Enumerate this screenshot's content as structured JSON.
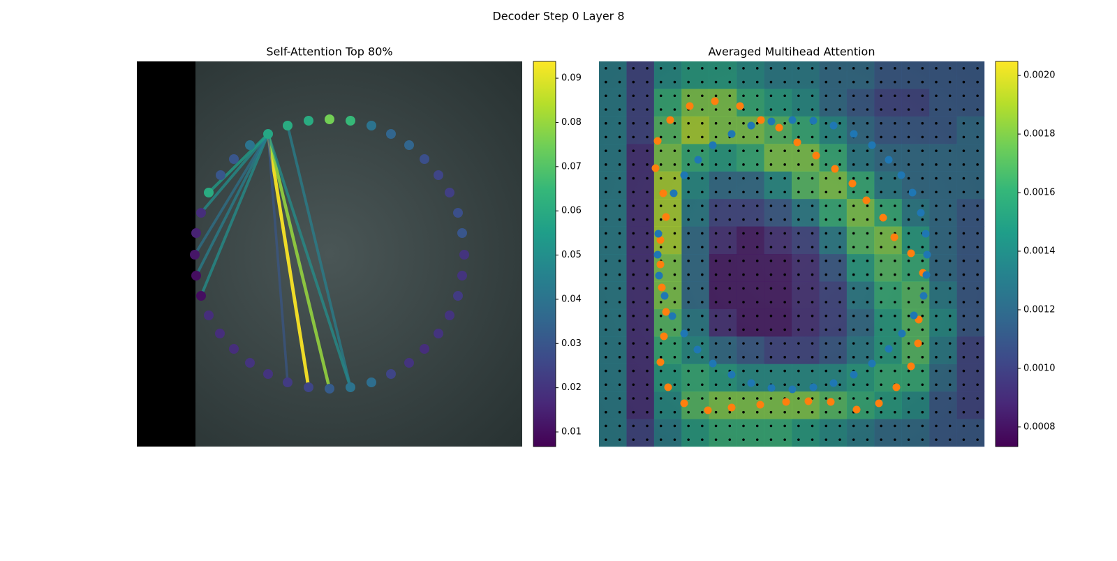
{
  "title": "Decoder Step 0 Layer 8",
  "chart_data": [
    {
      "type": "scatter",
      "title": "Self-Attention Top 80%",
      "x": [
        188,
        216,
        246,
        276,
        306,
        336,
        364,
        390,
        412,
        432,
        448,
        460,
        466,
        469,
        466,
        460,
        448,
        432,
        412,
        390,
        364,
        336,
        306,
        276,
        246,
        216,
        188,
        162,
        139,
        119,
        103,
        92,
        85,
        83,
        85,
        92,
        103,
        120,
        139,
        162
      ],
      "y": [
        104,
        92,
        85,
        83,
        85,
        92,
        104,
        120,
        140,
        163,
        188,
        217,
        246,
        277,
        307,
        336,
        364,
        390,
        412,
        432,
        448,
        460,
        467,
        469,
        467,
        460,
        448,
        432,
        412,
        390,
        364,
        336,
        307,
        277,
        246,
        217,
        188,
        163,
        140,
        120
      ],
      "values": [
        0.058,
        0.06,
        0.06,
        0.075,
        0.065,
        0.04,
        0.035,
        0.035,
        0.028,
        0.025,
        0.023,
        0.028,
        0.03,
        0.02,
        0.02,
        0.022,
        0.02,
        0.02,
        0.018,
        0.02,
        0.025,
        0.038,
        0.04,
        0.032,
        0.025,
        0.022,
        0.02,
        0.02,
        0.018,
        0.018,
        0.018,
        0.01,
        0.01,
        0.012,
        0.015,
        0.018,
        0.06,
        0.03,
        0.03,
        0.04
      ],
      "links": [
        {
          "from": 0,
          "to": 24,
          "value": 0.094
        },
        {
          "from": 0,
          "to": 23,
          "value": 0.08
        },
        {
          "from": 0,
          "to": 22,
          "value": 0.05
        },
        {
          "from": 1,
          "to": 22,
          "value": 0.045
        },
        {
          "from": 0,
          "to": 25,
          "value": 0.03
        },
        {
          "from": 0,
          "to": 31,
          "value": 0.05
        },
        {
          "from": 0,
          "to": 32,
          "value": 0.045
        },
        {
          "from": 0,
          "to": 33,
          "value": 0.04
        },
        {
          "from": 0,
          "to": 35,
          "value": 0.05
        },
        {
          "from": 0,
          "to": 36,
          "value": 0.055
        }
      ],
      "clim": [
        0.00669,
        0.0938
      ],
      "cticks": [
        0.01,
        0.02,
        0.03,
        0.04,
        0.05,
        0.06,
        0.07,
        0.08,
        0.09
      ],
      "colormap": [
        "#440154",
        "#482878",
        "#3e4989",
        "#31688e",
        "#26828e",
        "#1f9e89",
        "#35b779",
        "#6ece58",
        "#b5de2b",
        "#fde725"
      ]
    },
    {
      "type": "heatmap",
      "title": "Averaged Multihead Attention",
      "z": [
        [
          0.0013,
          0.001,
          0.0014,
          0.0015,
          0.0015,
          0.0014,
          0.0013,
          0.0013,
          0.0012,
          0.0012,
          0.0011,
          0.0011,
          0.0011,
          0.0011
        ],
        [
          0.0013,
          0.001,
          0.0016,
          0.0018,
          0.0018,
          0.0016,
          0.0015,
          0.0014,
          0.0012,
          0.0011,
          0.001,
          0.001,
          0.0011,
          0.0011
        ],
        [
          0.0013,
          0.001,
          0.0017,
          0.0019,
          0.0018,
          0.0018,
          0.0017,
          0.0016,
          0.0014,
          0.0012,
          0.0011,
          0.0011,
          0.0011,
          0.0012
        ],
        [
          0.0013,
          0.0009,
          0.0018,
          0.0016,
          0.0015,
          0.0016,
          0.0018,
          0.0018,
          0.0016,
          0.0013,
          0.0012,
          0.0012,
          0.0012,
          0.0012
        ],
        [
          0.0013,
          0.0009,
          0.0019,
          0.0014,
          0.0012,
          0.0012,
          0.0014,
          0.0017,
          0.0018,
          0.0016,
          0.0013,
          0.0012,
          0.0012,
          0.0012
        ],
        [
          0.0013,
          0.0009,
          0.0019,
          0.0013,
          0.001,
          0.001,
          0.0011,
          0.0013,
          0.0016,
          0.0018,
          0.0016,
          0.0013,
          0.0012,
          0.0011
        ],
        [
          0.0013,
          0.0009,
          0.0019,
          0.0012,
          0.0009,
          0.0008,
          0.0009,
          0.001,
          0.0013,
          0.0017,
          0.0018,
          0.0015,
          0.0012,
          0.0011
        ],
        [
          0.0013,
          0.0009,
          0.0018,
          0.0012,
          0.0008,
          0.0008,
          0.0008,
          0.0009,
          0.0011,
          0.0015,
          0.0017,
          0.0016,
          0.0012,
          0.0011
        ],
        [
          0.0013,
          0.0009,
          0.0018,
          0.0012,
          0.0008,
          0.0008,
          0.0008,
          0.0009,
          0.001,
          0.0013,
          0.0016,
          0.0017,
          0.0013,
          0.0011
        ],
        [
          0.0013,
          0.0009,
          0.0017,
          0.0013,
          0.0009,
          0.0008,
          0.0008,
          0.0009,
          0.001,
          0.0012,
          0.0015,
          0.0017,
          0.0014,
          0.0011
        ],
        [
          0.0013,
          0.0009,
          0.0016,
          0.0014,
          0.0012,
          0.0011,
          0.001,
          0.001,
          0.0011,
          0.0013,
          0.0015,
          0.0017,
          0.0013,
          0.001
        ],
        [
          0.0013,
          0.0009,
          0.0015,
          0.0016,
          0.0015,
          0.0014,
          0.0014,
          0.0014,
          0.0014,
          0.0015,
          0.0016,
          0.0016,
          0.0012,
          0.001
        ],
        [
          0.0013,
          0.0009,
          0.0014,
          0.0017,
          0.0018,
          0.0018,
          0.0018,
          0.0018,
          0.0017,
          0.0016,
          0.0015,
          0.0014,
          0.0011,
          0.001
        ],
        [
          0.0013,
          0.001,
          0.0013,
          0.0015,
          0.0016,
          0.0016,
          0.0016,
          0.0015,
          0.0014,
          0.0013,
          0.0012,
          0.0012,
          0.0011,
          0.0011
        ]
      ],
      "clim": [
        0.000733,
        0.002048
      ],
      "cticks": [
        0.0008,
        {
          "value": 0.001,
          "label": "0.0010"
        },
        0.0012,
        0.0014,
        0.0016,
        0.0018,
        {
          "value": 0.002,
          "label": "0.0020"
        }
      ],
      "colormap": [
        "#440154",
        "#482878",
        "#3e4989",
        "#31688e",
        "#26828e",
        "#1f9e89",
        "#35b779",
        "#6ece58",
        "#b5de2b",
        "#fde725"
      ],
      "series": [
        {
          "color": "#ff7f0e",
          "x": [
            84,
            102,
            130,
            166,
            202,
            232,
            258,
            284,
            311,
            338,
            363,
            383,
            407,
            423,
            447,
            464,
            465,
            458,
            457,
            447,
            426,
            401,
            369,
            332,
            300,
            268,
            231,
            190,
            156,
            122,
            99,
            88,
            93,
            96,
            90,
            88,
            88,
            96,
            92,
            81
          ],
          "y": [
            114,
            84,
            64,
            57,
            64,
            84,
            95,
            116,
            135,
            154,
            175,
            199,
            224,
            252,
            275,
            303,
            336,
            370,
            404,
            437,
            467,
            490,
            499,
            488,
            487,
            488,
            492,
            496,
            500,
            490,
            467,
            431,
            394,
            359,
            324,
            291,
            256,
            223,
            189,
            153
          ]
        },
        {
          "color": "#1f77b4",
          "x": [
            107,
            122,
            142,
            163,
            190,
            218,
            247,
            277,
            307,
            336,
            365,
            391,
            415,
            433,
            449,
            461,
            468,
            470,
            469,
            465,
            451,
            434,
            415,
            391,
            365,
            336,
            307,
            277,
            247,
            218,
            190,
            163,
            141,
            122,
            105,
            94,
            86,
            84,
            85
          ],
          "y": [
            189,
            163,
            141,
            120,
            104,
            92,
            86,
            84,
            85,
            92,
            104,
            120,
            141,
            163,
            188,
            217,
            247,
            277,
            306,
            336,
            364,
            390,
            412,
            433,
            449,
            461,
            467,
            470,
            468,
            461,
            449,
            433,
            413,
            390,
            365,
            336,
            307,
            277,
            247
          ]
        }
      ]
    }
  ]
}
